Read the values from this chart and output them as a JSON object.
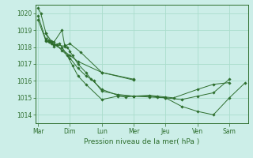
{
  "background_color": "#cceee8",
  "grid_color": "#aaddcc",
  "line_color": "#2d6e2d",
  "marker_color": "#2d6e2d",
  "xlabel": "Pression niveau de la mer( hPa )",
  "ylim": [
    1013.5,
    1020.5
  ],
  "yticks": [
    1014,
    1015,
    1016,
    1017,
    1018,
    1019,
    1020
  ],
  "day_labels": [
    "Mar",
    "Dim",
    "Lun",
    "Mer",
    "Jeu",
    "Ven",
    "Sam"
  ],
  "day_positions": [
    0,
    24,
    48,
    72,
    96,
    120,
    144
  ],
  "xlim": [
    -2,
    158
  ],
  "series": [
    [
      1020.3,
      1020.0,
      1018.8,
      1018.35,
      1018.3,
      1019.0,
      1018.1,
      1018.0,
      1017.75,
      1017.5,
      1017.0,
      1016.5,
      1016.1,
      1015.5,
      1015.15,
      1015.1,
      1015.05,
      1015.0,
      1014.9,
      1015.1,
      1015.3,
      1016.1
    ],
    [
      1018.8,
      1018.4,
      1018.3,
      1018.15,
      1018.2,
      1018.0,
      1017.5,
      1016.9,
      1016.3,
      1015.8,
      1014.9,
      1015.1,
      1015.05,
      1015.1,
      1015.1,
      1015.05,
      1015.0,
      1014.5,
      1014.2,
      1014.0,
      1015.0,
      1015.9
    ],
    [
      1018.5,
      1018.3,
      1018.2,
      1018.05,
      1018.1,
      1017.8,
      1017.35,
      1016.75,
      1016.3,
      1016.0,
      1015.4,
      1015.2,
      1015.1,
      1015.15,
      1015.1,
      1015.05,
      1015.0,
      1015.5,
      1015.8,
      1015.9
    ],
    [
      1019.6,
      1018.35,
      1018.15,
      1018.05,
      1018.2,
      1017.7,
      1016.5,
      1016.05
    ],
    [
      1019.85,
      1018.4,
      1018.15,
      1018.1,
      1017.5,
      1017.15,
      1016.5,
      1016.1
    ]
  ],
  "series_x": [
    [
      0,
      2,
      6,
      10,
      12,
      18,
      20,
      22,
      24,
      26,
      30,
      36,
      40,
      48,
      60,
      72,
      84,
      96,
      108,
      120,
      132,
      144
    ],
    [
      6,
      8,
      10,
      12,
      16,
      18,
      22,
      26,
      30,
      36,
      48,
      60,
      66,
      72,
      84,
      90,
      96,
      108,
      120,
      132,
      144,
      156
    ],
    [
      6,
      8,
      10,
      12,
      14,
      18,
      24,
      30,
      36,
      42,
      48,
      60,
      72,
      84,
      90,
      96,
      102,
      120,
      132,
      144
    ],
    [
      0,
      6,
      12,
      20,
      24,
      32,
      48,
      72
    ],
    [
      0,
      6,
      12,
      14,
      24,
      30,
      48,
      72
    ]
  ]
}
